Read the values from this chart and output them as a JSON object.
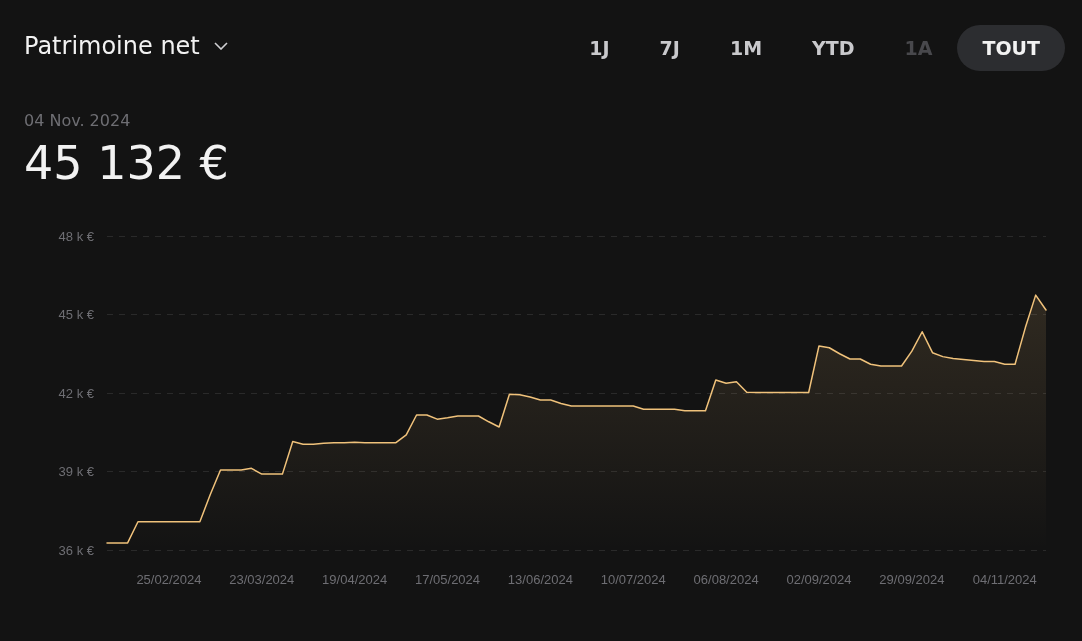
{
  "chart_data": {
    "type": "area",
    "title": "Patrimoine net",
    "subtitle": "04 Nov. 2024",
    "annotations": [
      "45 132 €",
      "1J",
      "7J",
      "1M",
      "YTD",
      "1A",
      "TOUT"
    ],
    "categories": [
      null,
      null,
      null,
      null,
      null,
      null,
      "25/02/2024",
      null,
      null,
      null,
      null,
      null,
      null,
      null,
      null,
      "23/03/2024",
      null,
      null,
      null,
      null,
      null,
      null,
      null,
      null,
      "19/04/2024",
      null,
      null,
      null,
      null,
      null,
      null,
      null,
      null,
      "17/05/2024",
      null,
      null,
      null,
      null,
      null,
      null,
      null,
      null,
      "13/06/2024",
      null,
      null,
      null,
      null,
      null,
      null,
      null,
      null,
      "10/07/2024",
      null,
      null,
      null,
      null,
      null,
      null,
      null,
      null,
      "06/08/2024",
      null,
      null,
      null,
      null,
      null,
      null,
      null,
      null,
      "02/09/2024",
      null,
      null,
      null,
      null,
      null,
      null,
      null,
      null,
      "29/09/2024",
      null,
      null,
      null,
      null,
      null,
      null,
      null,
      null,
      "04/11/2024",
      null,
      null,
      null,
      null
    ],
    "series": [
      {
        "color": "#f0c27b",
        "values": [
          36.27,
          36.27,
          36.27,
          37.08,
          37.08,
          37.08,
          37.08,
          37.08,
          37.08,
          37.08,
          38.11,
          39.06,
          39.06,
          39.06,
          39.12,
          38.9,
          38.9,
          38.9,
          40.15,
          40.04,
          40.04,
          40.08,
          40.1,
          40.1,
          40.12,
          40.1,
          40.1,
          40.1,
          40.1,
          40.4,
          41.16,
          41.16,
          41.0,
          41.05,
          41.12,
          41.12,
          41.12,
          40.9,
          40.7,
          41.95,
          41.93,
          41.85,
          41.73,
          41.73,
          41.6,
          41.5,
          41.5,
          41.5,
          41.5,
          41.5,
          41.5,
          41.5,
          41.38,
          41.38,
          41.38,
          41.38,
          41.32,
          41.32,
          41.32,
          42.5,
          42.37,
          42.43,
          42.03,
          42.02,
          42.02,
          42.02,
          42.02,
          42.02,
          42.02,
          43.8,
          43.73,
          43.5,
          43.3,
          43.3,
          43.1,
          43.03,
          43.03,
          43.03,
          43.6,
          44.34,
          43.54,
          43.39,
          43.32,
          43.28,
          43.24,
          43.2,
          43.2,
          43.1,
          43.1,
          44.5,
          45.74,
          45.17
        ]
      }
    ],
    "ylim": [
      36,
      48
    ],
    "yticks": [
      {
        "value": 36,
        "label": "36 k €"
      },
      {
        "value": 39,
        "label": "39 k €"
      },
      {
        "value": 42,
        "label": "42 k €"
      },
      {
        "value": 45,
        "label": "45 k €"
      },
      {
        "value": 48,
        "label": "48 k €"
      }
    ],
    "grid": "y",
    "marker": "none",
    "line_style": "solid"
  }
}
